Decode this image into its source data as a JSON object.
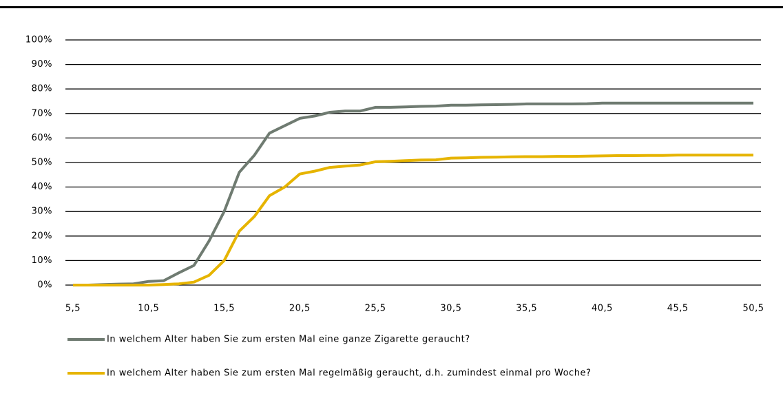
{
  "chart_data": {
    "type": "line",
    "x": [
      5.5,
      6.5,
      7.5,
      8.5,
      9.5,
      10.5,
      11.5,
      12.5,
      13.5,
      14.5,
      15.5,
      16.5,
      17.5,
      18.5,
      19.5,
      20.5,
      21.5,
      22.5,
      23.5,
      24.5,
      25.5,
      26.5,
      27.5,
      28.5,
      29.5,
      30.5,
      31.5,
      32.5,
      33.5,
      34.5,
      35.5,
      36.5,
      37.5,
      38.5,
      39.5,
      40.5,
      41.5,
      42.5,
      43.5,
      44.5,
      45.5,
      46.5,
      47.5,
      48.5,
      49.5,
      50.5
    ],
    "series": [
      {
        "name": "In welchem Alter haben Sie zum ersten Mal eine ganze Zigarette geraucht?",
        "color": "#6f7b71",
        "values": [
          0,
          0,
          0.2,
          0.4,
          0.5,
          1.5,
          1.8,
          5,
          8,
          18,
          30,
          46,
          53,
          62,
          65,
          68,
          69,
          70.5,
          71,
          71,
          72.5,
          72.5,
          72.7,
          72.9,
          73,
          73.4,
          73.4,
          73.5,
          73.6,
          73.7,
          73.9,
          73.9,
          73.9,
          73.9,
          74,
          74.2,
          74.2,
          74.2,
          74.2,
          74.2,
          74.2,
          74.2,
          74.2,
          74.2,
          74.2,
          74.2
        ]
      },
      {
        "name": "In welchem Alter haben Sie zum ersten Mal regelmäßig geraucht, d.h. zumindest einmal pro Woche?",
        "color": "#e6b400",
        "values": [
          0,
          0,
          0,
          0,
          0,
          0,
          0.2,
          0.5,
          1.2,
          4,
          10,
          22,
          28,
          36.5,
          40,
          45.3,
          46.5,
          48,
          48.5,
          49,
          50.3,
          50.5,
          50.8,
          51,
          51.1,
          51.8,
          51.9,
          52.1,
          52.2,
          52.3,
          52.4,
          52.4,
          52.5,
          52.5,
          52.6,
          52.7,
          52.8,
          52.8,
          52.9,
          52.9,
          53,
          53,
          53,
          53,
          53,
          53
        ]
      }
    ],
    "xlim": [
      5,
      51
    ],
    "ylim": [
      0,
      100
    ],
    "xticks": [
      {
        "value": 5.5,
        "label": "5,5"
      },
      {
        "value": 10.5,
        "label": "10,5"
      },
      {
        "value": 15.5,
        "label": "15,5"
      },
      {
        "value": 20.5,
        "label": "20,5"
      },
      {
        "value": 25.5,
        "label": "25,5"
      },
      {
        "value": 30.5,
        "label": "30,5"
      },
      {
        "value": 35.5,
        "label": "35,5"
      },
      {
        "value": 40.5,
        "label": "40,5"
      },
      {
        "value": 45.5,
        "label": "45,5"
      },
      {
        "value": 50.5,
        "label": "50,5"
      }
    ],
    "yticks": [
      {
        "value": 0,
        "label": "0%"
      },
      {
        "value": 10,
        "label": "10%"
      },
      {
        "value": 20,
        "label": "20%"
      },
      {
        "value": 30,
        "label": "30%"
      },
      {
        "value": 40,
        "label": "40%"
      },
      {
        "value": 50,
        "label": "50%"
      },
      {
        "value": 60,
        "label": "60%"
      },
      {
        "value": 70,
        "label": "70%"
      },
      {
        "value": 80,
        "label": "80%"
      },
      {
        "value": 90,
        "label": "90%"
      },
      {
        "value": 100,
        "label": "100%"
      }
    ],
    "grid": true
  }
}
